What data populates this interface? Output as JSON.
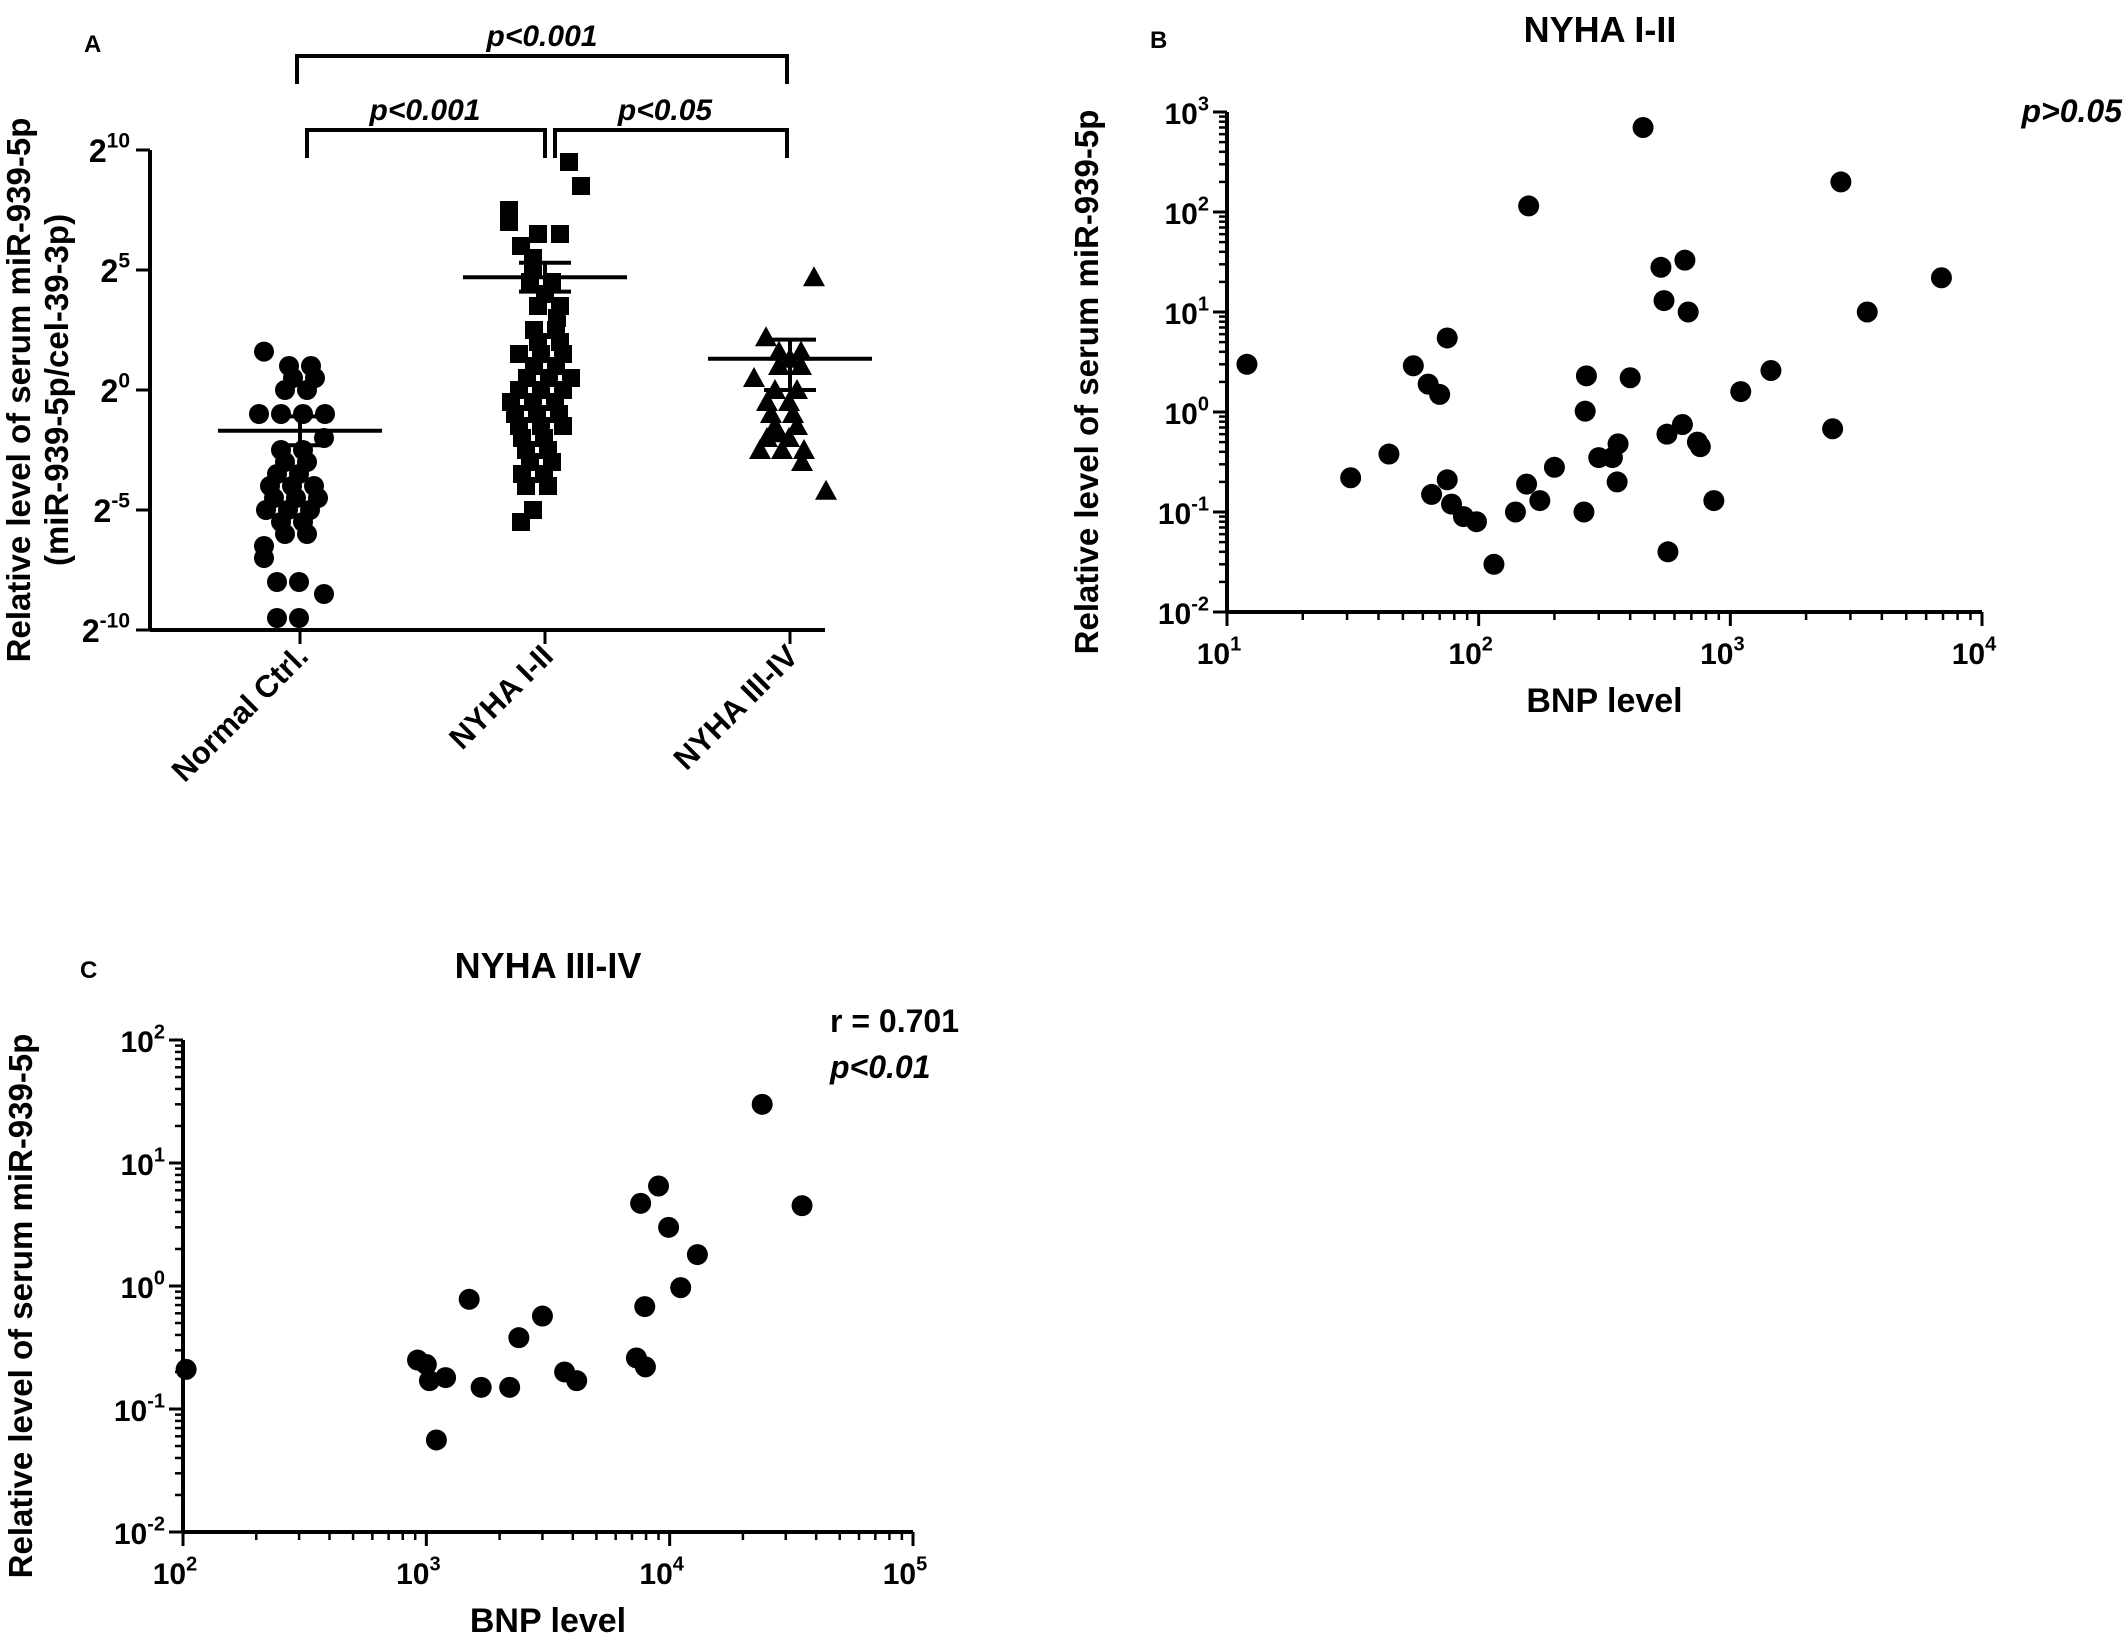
{
  "chart_data": [
    {
      "panel": "A",
      "type": "scatter",
      "title": "",
      "xlabel": "",
      "ylabel": [
        "Relative level of serum miR-939-5p",
        "(miR-939-5p/cel-39-3p)"
      ],
      "yscale": "log2",
      "ylim_exp": [
        -10,
        10
      ],
      "yticks": [
        {
          "base": "2",
          "exp": "10",
          "value": 10
        },
        {
          "base": "2",
          "exp": "5",
          "value": 5
        },
        {
          "base": "2",
          "exp": "0",
          "value": 0
        },
        {
          "base": "2",
          "exp": "-5",
          "value": -5
        },
        {
          "base": "2",
          "exp": "-10",
          "value": -10
        }
      ],
      "categories": [
        "Normal Ctrl.",
        "NYHA I-II",
        "NYHA III-IV"
      ],
      "marker_shapes": [
        "circle",
        "square",
        "triangle"
      ],
      "series": [
        {
          "log2_values": [
            1.6,
            1.0,
            1.0,
            0.5,
            0.5,
            0.0,
            0.0,
            -1.0,
            -1.0,
            -1.0,
            -1.0,
            -2.0,
            -2.5,
            -2.5,
            -3.0,
            -3.0,
            -3.5,
            -3.5,
            -4.0,
            -4.0,
            -4.0,
            -4.5,
            -4.5,
            -4.5,
            -5.0,
            -5.0,
            -5.0,
            -5.5,
            -5.5,
            -6.0,
            -6.0,
            -6.5,
            -7.0,
            -8.0,
            -8.0,
            -8.5,
            -9.5,
            -9.5
          ],
          "mean": -1.7,
          "sem_upper": -1.1,
          "sem_lower": -2.3
        },
        {
          "log2_values": [
            9.5,
            8.5,
            7.5,
            7.0,
            6.5,
            6.5,
            6.0,
            5.5,
            5.0,
            4.5,
            4.5,
            4.0,
            3.5,
            3.5,
            3.0,
            2.5,
            2.5,
            2.0,
            2.0,
            1.5,
            1.5,
            1.5,
            1.0,
            1.0,
            0.5,
            0.5,
            0.5,
            0.0,
            0.0,
            0.0,
            -0.5,
            -0.5,
            -0.5,
            -1.0,
            -1.0,
            -1.0,
            -1.5,
            -1.5,
            -1.5,
            -2.0,
            -2.0,
            -2.5,
            -2.5,
            -3.0,
            -3.0,
            -3.5,
            -3.5,
            -4.0,
            -4.0,
            -5.0,
            -5.5
          ],
          "mean": 4.7,
          "sem_upper": 5.3,
          "sem_lower": 4.1
        },
        {
          "log2_values": [
            4.7,
            2.2,
            1.6,
            1.6,
            1.3,
            1.0,
            1.0,
            0.5,
            0.0,
            0.0,
            -0.5,
            -0.5,
            -1.0,
            -1.0,
            -1.5,
            -1.5,
            -1.8,
            -2.0,
            -2.0,
            -2.5,
            -2.5,
            -2.5,
            -3.0,
            -4.2
          ],
          "mean": 1.3,
          "sem_upper": 2.1,
          "sem_lower": 0.0
        }
      ],
      "comparisons": [
        {
          "groups": [
            "Normal Ctrl.",
            "NYHA III-IV"
          ],
          "label": "p<0.001"
        },
        {
          "groups": [
            "Normal Ctrl.",
            "NYHA I-II"
          ],
          "label": "p<0.001"
        },
        {
          "groups": [
            "NYHA I-II",
            "NYHA III-IV"
          ],
          "label": "p<0.05"
        }
      ]
    },
    {
      "panel": "B",
      "type": "scatter",
      "title": "NYHA I-II",
      "xlabel": "BNP level",
      "ylabel": "Relative level of serum miR-939-5p",
      "xscale": "log10",
      "yscale": "log10",
      "xlim_exp": [
        1,
        4
      ],
      "ylim_exp": [
        -2,
        3
      ],
      "xticks_exp": [
        "1",
        "2",
        "3",
        "4"
      ],
      "yticks_exp": [
        "-2",
        "-1",
        "0",
        "1",
        "2",
        "3"
      ],
      "annotation": "p>0.05",
      "points": [
        [
          12,
          3.0
        ],
        [
          31,
          0.22
        ],
        [
          44,
          0.38
        ],
        [
          55,
          2.9
        ],
        [
          63,
          1.9
        ],
        [
          65,
          0.15
        ],
        [
          70,
          1.5
        ],
        [
          75,
          5.5
        ],
        [
          75,
          0.21
        ],
        [
          78,
          0.12
        ],
        [
          87,
          0.09
        ],
        [
          98,
          0.08
        ],
        [
          115,
          0.03
        ],
        [
          140,
          0.1
        ],
        [
          155,
          0.19
        ],
        [
          158,
          115
        ],
        [
          175,
          0.13
        ],
        [
          200,
          0.28
        ],
        [
          262,
          0.1
        ],
        [
          265,
          1.02
        ],
        [
          268,
          2.3
        ],
        [
          300,
          0.35
        ],
        [
          340,
          0.35
        ],
        [
          355,
          0.2
        ],
        [
          358,
          0.48
        ],
        [
          400,
          2.2
        ],
        [
          450,
          700
        ],
        [
          530,
          28
        ],
        [
          545,
          13
        ],
        [
          560,
          0.6
        ],
        [
          565,
          0.04
        ],
        [
          645,
          0.75
        ],
        [
          660,
          33
        ],
        [
          680,
          10
        ],
        [
          740,
          0.5
        ],
        [
          760,
          0.45
        ],
        [
          860,
          0.13
        ],
        [
          1100,
          1.6
        ],
        [
          1450,
          2.6
        ],
        [
          2550,
          0.68
        ],
        [
          2750,
          200
        ],
        [
          3500,
          10
        ],
        [
          6900,
          22
        ]
      ]
    },
    {
      "panel": "C",
      "type": "scatter",
      "title": "NYHA III-IV",
      "xlabel": "BNP level",
      "ylabel": "Relative level of serum miR-939-5p",
      "xscale": "log10",
      "yscale": "log10",
      "xlim_exp": [
        2,
        5
      ],
      "ylim_exp": [
        -2,
        2
      ],
      "xticks_exp": [
        "2",
        "3",
        "4",
        "5"
      ],
      "yticks_exp": [
        "-2",
        "-1",
        "0",
        "1",
        "2"
      ],
      "annotation_r": "r = 0.701",
      "annotation_p": "p<0.01",
      "points": [
        [
          103,
          0.21
        ],
        [
          920,
          0.25
        ],
        [
          1000,
          0.23
        ],
        [
          1030,
          0.17
        ],
        [
          1100,
          0.056
        ],
        [
          1200,
          0.18
        ],
        [
          1500,
          0.78
        ],
        [
          1680,
          0.15
        ],
        [
          2200,
          0.15
        ],
        [
          2400,
          0.38
        ],
        [
          3000,
          0.57
        ],
        [
          3700,
          0.2
        ],
        [
          4150,
          0.17
        ],
        [
          7300,
          0.26
        ],
        [
          7600,
          4.7
        ],
        [
          7900,
          0.68
        ],
        [
          7950,
          0.22
        ],
        [
          9000,
          6.5
        ],
        [
          9900,
          3.0
        ],
        [
          11100,
          0.97
        ],
        [
          13000,
          1.8
        ],
        [
          24000,
          30
        ],
        [
          35000,
          4.5
        ]
      ]
    }
  ],
  "panel_letters": [
    "A",
    "B",
    "C"
  ]
}
